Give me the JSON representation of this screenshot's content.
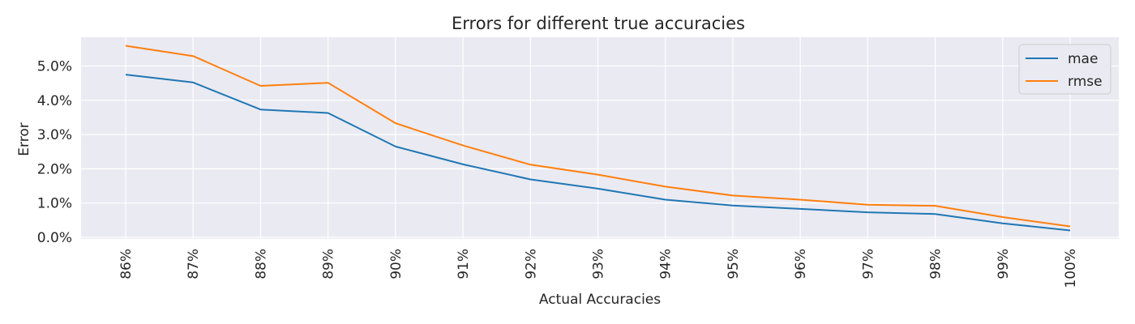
{
  "chart_data": {
    "type": "line",
    "title": "Errors for different true accuracies",
    "xlabel": "Actual Accuracies",
    "ylabel": "Error",
    "categories": [
      "86%",
      "87%",
      "88%",
      "89%",
      "90%",
      "91%",
      "92%",
      "93%",
      "94%",
      "95%",
      "96%",
      "97%",
      "98%",
      "99%",
      "100%"
    ],
    "yticks": [
      "0.0%",
      "1.0%",
      "2.0%",
      "3.0%",
      "4.0%",
      "5.0%"
    ],
    "ylim": [
      0,
      5.85
    ],
    "grid": true,
    "legend_position": "top-right",
    "series": [
      {
        "name": "mae",
        "color": "#1f77b4",
        "values": [
          4.75,
          4.52,
          3.73,
          3.63,
          2.65,
          2.13,
          1.69,
          1.42,
          1.1,
          0.93,
          0.83,
          0.73,
          0.68,
          0.41,
          0.2
        ]
      },
      {
        "name": "rmse",
        "color": "#ff7f0e",
        "values": [
          5.59,
          5.29,
          4.42,
          4.51,
          3.33,
          2.68,
          2.12,
          1.83,
          1.48,
          1.22,
          1.1,
          0.95,
          0.92,
          0.59,
          0.32
        ]
      }
    ]
  }
}
